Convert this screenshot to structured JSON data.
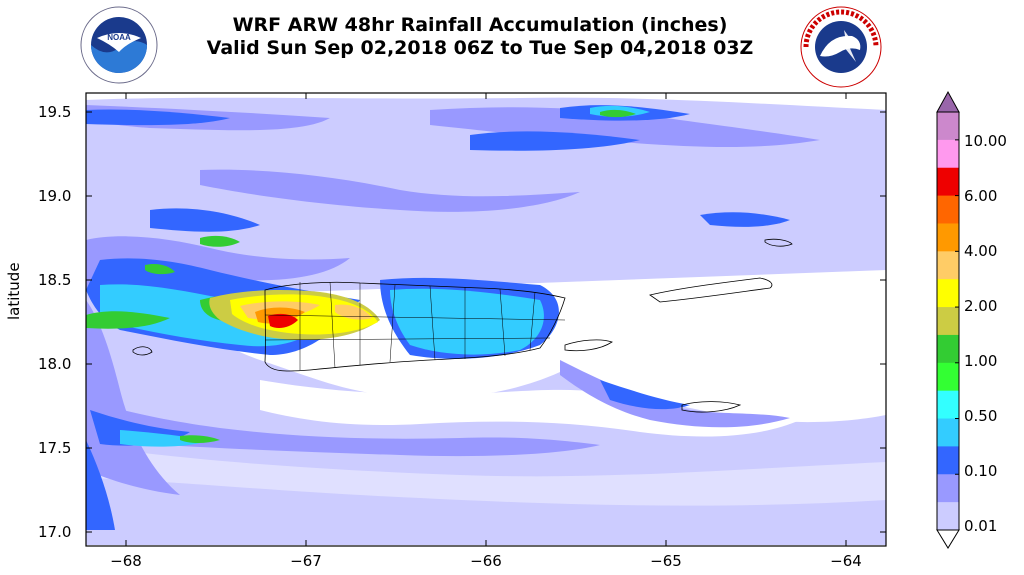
{
  "title": {
    "line1": "WRF ARW 48hr Rainfall Accumulation (inches)",
    "line2": "Valid Sun Sep 02,2018 06Z to Tue Sep 04,2018 03Z"
  },
  "logos": {
    "left": {
      "icon": "noaa-logo",
      "text": "NOAA",
      "ring_text": "NATIONAL OCEANIC AND ATMOSPHERIC ADMINISTRATION · U.S. DEPARTMENT OF COMMERCE"
    },
    "right": {
      "icon": "nws-logo",
      "ring_text": "NATIONAL WEATHER SERVICE"
    }
  },
  "axes": {
    "ylabel": "latitude",
    "yticks": [
      "19.5",
      "19.0",
      "18.5",
      "18.0",
      "17.5",
      "17.0"
    ],
    "xticks": [
      "−68",
      "−67",
      "−66",
      "−65",
      "−64"
    ]
  },
  "colorbar": {
    "labels": [
      "10.00",
      "6.00",
      "4.00",
      "2.00",
      "1.00",
      "0.50",
      "0.10",
      "0.01"
    ],
    "colors": [
      "#cc88cc",
      "#ff99ee",
      "#ee0000",
      "#ff6600",
      "#ff9900",
      "#ffcc66",
      "#ffff00",
      "#cccc44",
      "#33cc33",
      "#33ff33",
      "#33ffff",
      "#33ccff",
      "#3366ff",
      "#9999ff",
      "#ccccff"
    ],
    "extend_top_color": "#9966aa"
  }
}
